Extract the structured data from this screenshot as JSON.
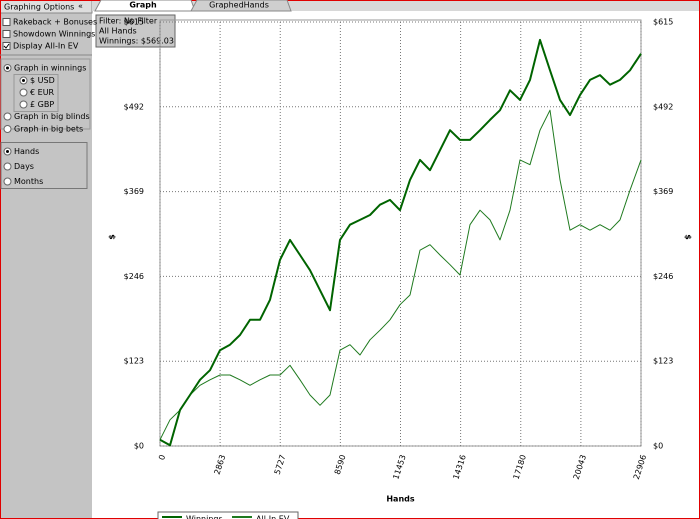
{
  "sidebar": {
    "title": "Graphing Options",
    "collapse": "«",
    "checkboxes": [
      {
        "label": "Rakeback + Bonuses",
        "checked": false
      },
      {
        "label": "Showdown Winnings",
        "checked": false
      },
      {
        "label": "Display All-In EV",
        "checked": true
      }
    ],
    "graph_units": [
      {
        "label": "Graph in winnings",
        "selected": true,
        "currencies": [
          {
            "label": "$ USD",
            "selected": true
          },
          {
            "label": "€ EUR",
            "selected": false
          },
          {
            "label": "£ GBP",
            "selected": false
          }
        ]
      },
      {
        "label": "Graph in big blinds",
        "selected": false
      },
      {
        "label": "Graph in big bets",
        "selected": false
      }
    ],
    "x_axis_modes": [
      {
        "label": "Hands",
        "selected": true
      },
      {
        "label": "Days",
        "selected": false
      },
      {
        "label": "Months",
        "selected": false
      }
    ]
  },
  "tabs": [
    {
      "label": "Graph",
      "active": true
    },
    {
      "label": "GraphedHands",
      "active": false
    }
  ],
  "filter_box": [
    "Filter: No Filter",
    "All Hands",
    "Winnings: $569.03"
  ],
  "chart_data": {
    "type": "line",
    "xlabel": "Hands",
    "ylabel": "$",
    "x": [
      0,
      476,
      952,
      1429,
      1905,
      2381,
      2857,
      3334,
      3810,
      4286,
      4762,
      5239,
      5715,
      6191,
      6667,
      7144,
      7620,
      8096,
      8572,
      9049,
      9525,
      10001,
      10477,
      10954,
      11430,
      11906,
      12382,
      12859,
      13335,
      13811,
      14287,
      14764,
      15240,
      15716,
      16192,
      16669,
      17145,
      17621,
      18097,
      18574,
      19050,
      19526,
      20002,
      20479,
      20955,
      21431,
      21907,
      22384,
      22906
    ],
    "series": [
      {
        "name": "Winnings",
        "color": "#006400",
        "values": [
          9,
          1,
          52,
          74,
          96,
          110,
          139,
          147,
          161,
          183,
          183,
          212,
          270,
          299,
          277,
          255,
          226,
          197,
          299,
          321,
          328,
          335,
          350,
          357,
          342,
          386,
          415,
          400,
          429,
          458,
          444,
          444,
          458,
          473,
          487,
          516,
          502,
          531,
          589,
          545,
          502,
          480,
          509,
          531,
          538,
          524,
          531,
          545,
          569
        ]
      },
      {
        "name": "All-In EV",
        "color": "#1f7a1f",
        "values": [
          9,
          38,
          52,
          74,
          88,
          96,
          103,
          103,
          96,
          88,
          96,
          103,
          103,
          117,
          96,
          74,
          59,
          74,
          139,
          147,
          132,
          154,
          168,
          183,
          205,
          219,
          284,
          292,
          277,
          263,
          248,
          321,
          342,
          328,
          299,
          342,
          415,
          408,
          458,
          487,
          386,
          313,
          321,
          313,
          321,
          313,
          328,
          371,
          415
        ]
      }
    ],
    "xlim": [
      0,
      22906
    ],
    "xticks": [
      0,
      2863,
      5727,
      8590,
      11453,
      14316,
      17180,
      20043,
      22906
    ],
    "ylim": [
      0,
      615
    ],
    "yticks": [
      {
        "value": 0,
        "label": "$0"
      },
      {
        "value": 123,
        "label": "$123"
      },
      {
        "value": 246,
        "label": "$246"
      },
      {
        "value": 369,
        "label": "$369"
      },
      {
        "value": 492,
        "label": "$492"
      },
      {
        "value": 615,
        "label": "$615"
      }
    ],
    "grid": true
  }
}
